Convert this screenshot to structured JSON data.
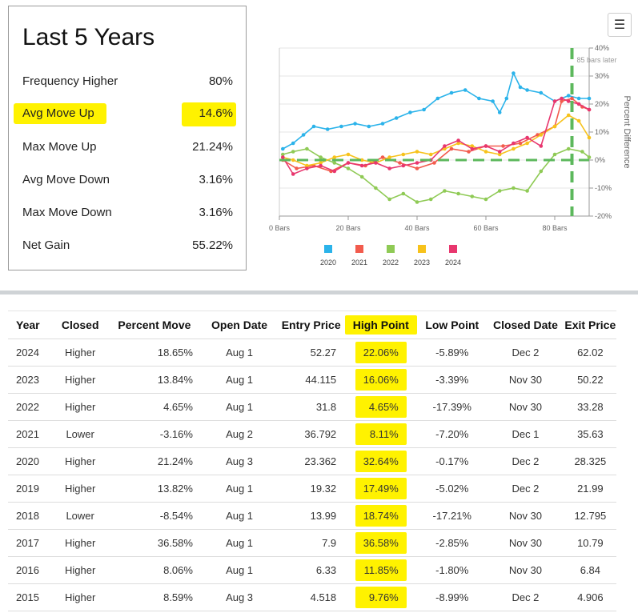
{
  "stats": {
    "title": "Last 5 Years",
    "rows": [
      {
        "label": "Frequency Higher",
        "value": "80%"
      },
      {
        "label": "Avg Move Up",
        "value": "14.6%"
      },
      {
        "label": "Max Move Up",
        "value": "21.24%"
      },
      {
        "label": "Avg Move Down",
        "value": "3.16%"
      },
      {
        "label": "Max Move Down",
        "value": "3.16%"
      },
      {
        "label": "Net Gain",
        "value": "55.22%"
      }
    ]
  },
  "menu_icon": "hamburger-menu-icon",
  "chart_data": {
    "type": "line",
    "title": "",
    "xlabel": "",
    "ylabel": "Percent Difference",
    "xlim": [
      0,
      90
    ],
    "ylim": [
      -20,
      40
    ],
    "x_ticks": [
      "0 Bars",
      "20 Bars",
      "40 Bars",
      "60 Bars",
      "80 Bars"
    ],
    "x_tick_values": [
      0,
      20,
      40,
      60,
      80
    ],
    "y_ticks": [
      "40%",
      "30%",
      "20%",
      "10%",
      "0%",
      "-10%",
      "-20%"
    ],
    "y_tick_values": [
      40,
      30,
      20,
      10,
      0,
      -10,
      -20
    ],
    "legend_position": "bottom",
    "marker_line": {
      "x": 85,
      "label": "85 bars later",
      "color": "#5cb85c"
    },
    "zero_line_color": "#5cb85c",
    "series": [
      {
        "name": "2020",
        "color": "#2bb3ea",
        "x": [
          1,
          4,
          7,
          10,
          14,
          18,
          22,
          26,
          30,
          34,
          38,
          42,
          46,
          50,
          54,
          58,
          62,
          64,
          66,
          68,
          70,
          72,
          76,
          80,
          84,
          87,
          90
        ],
        "values": [
          4,
          6,
          9,
          12,
          11,
          12,
          13,
          12,
          13,
          15,
          17,
          18,
          22,
          24,
          25,
          22,
          21,
          17,
          22,
          31,
          26,
          25,
          24,
          21,
          23,
          22,
          22
        ]
      },
      {
        "name": "2021",
        "color": "#f25b4d",
        "x": [
          1,
          5,
          10,
          15,
          20,
          25,
          30,
          35,
          40,
          45,
          50,
          55,
          60,
          65,
          70,
          75,
          80,
          82,
          85,
          88,
          90
        ],
        "values": [
          0,
          -3,
          -2,
          -4,
          -1,
          -2,
          1,
          -1,
          -3,
          -1,
          4,
          3,
          5,
          5,
          6,
          9,
          12,
          21,
          22,
          19,
          18
        ]
      },
      {
        "name": "2022",
        "color": "#8fca55",
        "x": [
          1,
          4,
          8,
          12,
          16,
          20,
          24,
          28,
          32,
          36,
          40,
          44,
          48,
          52,
          56,
          60,
          64,
          68,
          72,
          76,
          80,
          84,
          88,
          90
        ],
        "values": [
          2,
          3,
          4,
          1,
          -1,
          -3,
          -6,
          -10,
          -14,
          -12,
          -15,
          -14,
          -11,
          -12,
          -13,
          -14,
          -11,
          -10,
          -11,
          -4,
          2,
          4,
          3,
          1
        ]
      },
      {
        "name": "2023",
        "color": "#f7c21b",
        "x": [
          1,
          4,
          8,
          12,
          16,
          20,
          24,
          28,
          32,
          36,
          40,
          44,
          48,
          52,
          56,
          60,
          64,
          68,
          72,
          76,
          80,
          84,
          87,
          90
        ],
        "values": [
          1,
          0,
          -2,
          -1,
          1,
          2,
          0,
          -1,
          1,
          2,
          3,
          2,
          4,
          6,
          5,
          3,
          2,
          4,
          6,
          9,
          12,
          16,
          14,
          8
        ]
      },
      {
        "name": "2024",
        "color": "#e8366e",
        "x": [
          1,
          4,
          8,
          12,
          16,
          20,
          24,
          28,
          32,
          36,
          40,
          44,
          48,
          52,
          56,
          60,
          64,
          68,
          72,
          76,
          80,
          82,
          84,
          87,
          90
        ],
        "values": [
          1,
          -5,
          -3,
          -2,
          -4,
          -1,
          -2,
          -1,
          -3,
          -2,
          -1,
          0,
          5,
          7,
          4,
          5,
          3,
          6,
          8,
          5,
          21,
          22,
          21,
          20,
          18
        ]
      }
    ]
  },
  "table": {
    "columns": [
      "Year",
      "Closed",
      "Percent Move",
      "Open Date",
      "Entry Price",
      "High Point",
      "Low Point",
      "Closed Date",
      "Exit Price"
    ],
    "rows": [
      {
        "year": "2024",
        "closed": "Higher",
        "move": "18.65%",
        "move_sign": "pos",
        "open": "Aug 1",
        "entry": "52.27",
        "high": "22.06%",
        "low": "-5.89%",
        "close_date": "Dec 2",
        "exit": "62.02"
      },
      {
        "year": "2023",
        "closed": "Higher",
        "move": "13.84%",
        "move_sign": "pos",
        "open": "Aug 1",
        "entry": "44.115",
        "high": "16.06%",
        "low": "-3.39%",
        "close_date": "Nov 30",
        "exit": "50.22"
      },
      {
        "year": "2022",
        "closed": "Higher",
        "move": "4.65%",
        "move_sign": "pos",
        "open": "Aug 1",
        "entry": "31.8",
        "high": "4.65%",
        "low": "-17.39%",
        "close_date": "Nov 30",
        "exit": "33.28"
      },
      {
        "year": "2021",
        "closed": "Lower",
        "move": "-3.16%",
        "move_sign": "neg",
        "open": "Aug 2",
        "entry": "36.792",
        "high": "8.11%",
        "low": "-7.20%",
        "close_date": "Dec 1",
        "exit": "35.63"
      },
      {
        "year": "2020",
        "closed": "Higher",
        "move": "21.24%",
        "move_sign": "pos",
        "open": "Aug 3",
        "entry": "23.362",
        "high": "32.64%",
        "low": "-0.17%",
        "close_date": "Dec 2",
        "exit": "28.325"
      },
      {
        "year": "2019",
        "closed": "Higher",
        "move": "13.82%",
        "move_sign": "pos",
        "open": "Aug 1",
        "entry": "19.32",
        "high": "17.49%",
        "low": "-5.02%",
        "close_date": "Dec 2",
        "exit": "21.99"
      },
      {
        "year": "2018",
        "closed": "Lower",
        "move": "-8.54%",
        "move_sign": "neg",
        "open": "Aug 1",
        "entry": "13.99",
        "high": "18.74%",
        "low": "-17.21%",
        "close_date": "Nov 30",
        "exit": "12.795"
      },
      {
        "year": "2017",
        "closed": "Higher",
        "move": "36.58%",
        "move_sign": "pos",
        "open": "Aug 1",
        "entry": "7.9",
        "high": "36.58%",
        "low": "-2.85%",
        "close_date": "Nov 30",
        "exit": "10.79"
      },
      {
        "year": "2016",
        "closed": "Higher",
        "move": "8.06%",
        "move_sign": "pos",
        "open": "Aug 1",
        "entry": "6.33",
        "high": "11.85%",
        "low": "-1.80%",
        "close_date": "Nov 30",
        "exit": "6.84"
      },
      {
        "year": "2015",
        "closed": "Higher",
        "move": "8.59%",
        "move_sign": "pos",
        "open": "Aug 3",
        "entry": "4.518",
        "high": "9.76%",
        "low": "-8.99%",
        "close_date": "Dec 2",
        "exit": "4.906"
      }
    ]
  }
}
